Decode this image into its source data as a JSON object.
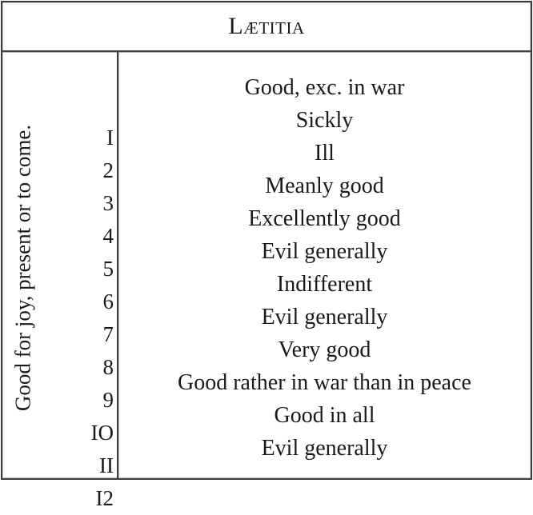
{
  "table": {
    "title": "Lætitia",
    "side_label": "Good for joy, present or to come.",
    "rows": [
      {
        "num": "I",
        "text": "Good, exc. in war"
      },
      {
        "num": "2",
        "text": "Sickly"
      },
      {
        "num": "3",
        "text": "Ill"
      },
      {
        "num": "4",
        "text": "Meanly good"
      },
      {
        "num": "5",
        "text": "Excellently good"
      },
      {
        "num": "6",
        "text": "Evil generally"
      },
      {
        "num": "7",
        "text": "Indifferent"
      },
      {
        "num": "8",
        "text": "Evil generally"
      },
      {
        "num": "9",
        "text": "Very good"
      },
      {
        "num": "IO",
        "text": "Good rather in war than in peace"
      },
      {
        "num": "II",
        "text": "Good in all"
      },
      {
        "num": "I2",
        "text": "Evil generally"
      }
    ]
  }
}
